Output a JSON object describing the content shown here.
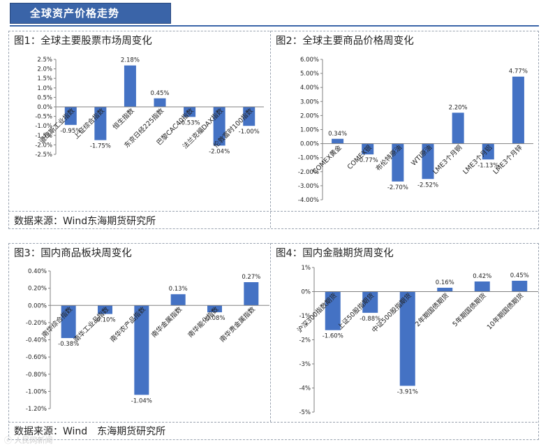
{
  "header": {
    "title": "全球资产价格走势"
  },
  "source_top": "数据来源：Wind东海期货研究所",
  "source_bottom": "数据来源：Wind　东海期货研究所",
  "watermark": "ⓒ 人民网新闻",
  "colors": {
    "bar": "#4472c4",
    "banner": "#3a64a8"
  },
  "chart_data": [
    {
      "type": "bar",
      "title": "图1：全球主要股票市场周变化",
      "categories": [
        "道琼斯工业指数",
        "上证综合指数",
        "恒生指数",
        "东京日经225指数",
        "巴黎CAC40指数",
        "法兰克福DAX指数",
        "伦敦富时100指数"
      ],
      "values": [
        -0.95,
        -1.75,
        2.18,
        0.45,
        -0.53,
        -2.04,
        -1.0
      ],
      "data_labels": [
        "-0.95%",
        "-1.75%",
        "2.18%",
        "0.45%",
        "-0.53%",
        "-2.04%",
        "-1.00%"
      ],
      "ylim": [
        -2.5,
        2.5
      ],
      "yticks": [
        "2.5%",
        "2.0%",
        "1.5%",
        "1.0%",
        "0.5%",
        "0.0%",
        "-0.5%",
        "-1.0%",
        "-1.5%",
        "-2.0%",
        "-2.5%"
      ],
      "ytick_values": [
        2.5,
        2.0,
        1.5,
        1.0,
        0.5,
        0.0,
        -0.5,
        -1.0,
        -1.5,
        -2.0,
        -2.5
      ],
      "xlabel": "",
      "ylabel": "",
      "grid": false
    },
    {
      "type": "bar",
      "title": "图2：全球主要商品价格周变化",
      "categories": [
        "COMEX黄金",
        "COMEX银",
        "布伦特原油",
        "WTI原油",
        "LME3个月铜",
        "LME3个月铝",
        "LME3个月锌"
      ],
      "values": [
        0.34,
        -0.77,
        -2.7,
        -2.52,
        2.2,
        -1.13,
        4.77
      ],
      "data_labels": [
        "0.34%",
        "-0.77%",
        "-2.70%",
        "-2.52%",
        "2.20%",
        "-1.13%",
        "4.77%"
      ],
      "ylim": [
        -4.0,
        6.0
      ],
      "yticks": [
        "6.00%",
        "5.00%",
        "4.00%",
        "3.00%",
        "2.00%",
        "1.00%",
        "0.00%",
        "-1.00%",
        "-2.00%",
        "-3.00%",
        "-4.00%"
      ],
      "ytick_values": [
        6,
        5,
        4,
        3,
        2,
        1,
        0,
        -1,
        -2,
        -3,
        -4
      ],
      "xlabel": "",
      "ylabel": "",
      "grid": false
    },
    {
      "type": "bar",
      "title": "图3：国内商品板块周变化",
      "categories": [
        "南华综合指数",
        "南华工业品指数",
        "南华农产品指数",
        "南华金属指数",
        "南华能化指数",
        "南华贵金属指数"
      ],
      "values": [
        -0.38,
        -0.1,
        -1.04,
        0.13,
        -0.08,
        0.27
      ],
      "data_labels": [
        "-0.38%",
        "-0.10%",
        "-1.04%",
        "0.13%",
        "-0.08%",
        "0.27%"
      ],
      "ylim": [
        -1.2,
        0.4
      ],
      "yticks": [
        "0.40%",
        "0.20%",
        "0.00%",
        "-0.20%",
        "-0.40%",
        "-0.60%",
        "-0.80%",
        "-1.00%",
        "-1.20%"
      ],
      "ytick_values": [
        0.4,
        0.2,
        0.0,
        -0.2,
        -0.4,
        -0.6,
        -0.8,
        -1.0,
        -1.2
      ],
      "xlabel": "",
      "ylabel": "",
      "grid": false
    },
    {
      "type": "bar",
      "title": "图4：国内金融期货周变化",
      "categories": [
        "沪深300指数期货",
        "上证50股指期货",
        "中证500股指期货",
        "2年期国债期货",
        "5年期国债期货",
        "10年期国债期货"
      ],
      "values": [
        -1.6,
        -0.88,
        -3.91,
        0.16,
        0.42,
        0.45
      ],
      "data_labels": [
        "-1.60%",
        "-0.88%",
        "-3.91%",
        "0.16%",
        "0.42%",
        "0.45%"
      ],
      "ylim": [
        -5,
        1
      ],
      "yticks": [
        "1%",
        "0%",
        "-1%",
        "-2%",
        "-3%",
        "-4%",
        "-5%"
      ],
      "ytick_values": [
        1,
        0,
        -1,
        -2,
        -3,
        -4,
        -5
      ],
      "xlabel": "",
      "ylabel": "",
      "grid": false
    }
  ]
}
